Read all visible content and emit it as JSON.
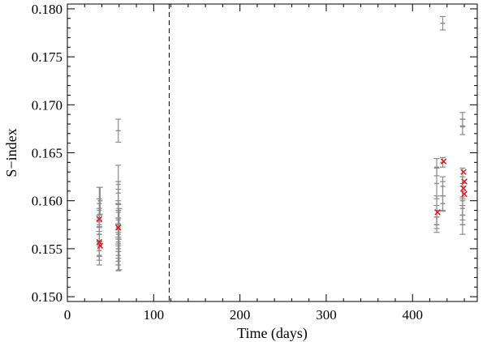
{
  "chart_data": {
    "type": "scatter",
    "xlabel": "Time (days)",
    "ylabel": "S−index",
    "xlim": [
      0,
      475
    ],
    "ylim": [
      0.1495,
      0.1805
    ],
    "x_ticks": [
      0,
      100,
      200,
      300,
      400
    ],
    "y_ticks": [
      0.15,
      0.155,
      0.16,
      0.165,
      0.17,
      0.175,
      0.18
    ],
    "y_tick_labels": [
      "0.150",
      "0.155",
      "0.160",
      "0.165",
      "0.170",
      "0.175",
      "0.180"
    ],
    "grid": false,
    "vline": {
      "x": 118,
      "style": "dashed"
    },
    "colors": {
      "errorbar": "#8c8c8c",
      "marker": "#e8141c",
      "axis": "#000000"
    },
    "series": [
      {
        "marker": "errorbar",
        "points": [
          {
            "x": 37,
            "y": 0.1597,
            "err": 0.0017
          },
          {
            "x": 37,
            "y": 0.159,
            "err": 0.0012
          },
          {
            "x": 37,
            "y": 0.1582,
            "err": 0.001
          },
          {
            "x": 37,
            "y": 0.1575,
            "err": 0.001
          },
          {
            "x": 37,
            "y": 0.1565,
            "err": 0.0008
          },
          {
            "x": 37,
            "y": 0.1555,
            "err": 0.0013
          },
          {
            "x": 37,
            "y": 0.1548,
            "err": 0.001
          },
          {
            "x": 37,
            "y": 0.1543,
            "err": 0.001
          },
          {
            "x": 38,
            "y": 0.16,
            "err": 0.0014
          },
          {
            "x": 59,
            "y": 0.1673,
            "err": 0.0012
          },
          {
            "x": 59,
            "y": 0.1617,
            "err": 0.002
          },
          {
            "x": 59,
            "y": 0.1608,
            "err": 0.0012
          },
          {
            "x": 59,
            "y": 0.1597,
            "err": 0.0015
          },
          {
            "x": 59,
            "y": 0.1588,
            "err": 0.0012
          },
          {
            "x": 59,
            "y": 0.158,
            "err": 0.001
          },
          {
            "x": 59,
            "y": 0.1572,
            "err": 0.001
          },
          {
            "x": 59,
            "y": 0.1565,
            "err": 0.001
          },
          {
            "x": 59,
            "y": 0.1557,
            "err": 0.001
          },
          {
            "x": 59,
            "y": 0.155,
            "err": 0.001
          },
          {
            "x": 59,
            "y": 0.1543,
            "err": 0.001
          },
          {
            "x": 59,
            "y": 0.1537,
            "err": 0.001
          },
          {
            "x": 60,
            "y": 0.156,
            "err": 0.0032
          },
          {
            "x": 428,
            "y": 0.1635,
            "err": 0.0009
          },
          {
            "x": 428,
            "y": 0.1618,
            "err": 0.0016
          },
          {
            "x": 428,
            "y": 0.159,
            "err": 0.0015
          },
          {
            "x": 428,
            "y": 0.1583,
            "err": 0.0012
          },
          {
            "x": 428,
            "y": 0.1575,
            "err": 0.0008
          },
          {
            "x": 435,
            "y": 0.1785,
            "err": 0.0007
          },
          {
            "x": 435,
            "y": 0.164,
            "err": 0.0005
          },
          {
            "x": 435,
            "y": 0.1615,
            "err": 0.001
          },
          {
            "x": 435,
            "y": 0.1605,
            "err": 0.0015
          },
          {
            "x": 435,
            "y": 0.1597,
            "err": 0.0008
          },
          {
            "x": 458,
            "y": 0.1685,
            "err": 0.0007
          },
          {
            "x": 458,
            "y": 0.1677,
            "err": 0.0008
          },
          {
            "x": 458,
            "y": 0.1618,
            "err": 0.0016
          },
          {
            "x": 458,
            "y": 0.161,
            "err": 0.0015
          },
          {
            "x": 458,
            "y": 0.16,
            "err": 0.0015
          },
          {
            "x": 458,
            "y": 0.1592,
            "err": 0.0012
          },
          {
            "x": 458,
            "y": 0.1585,
            "err": 0.001
          },
          {
            "x": 458,
            "y": 0.1575,
            "err": 0.001
          }
        ]
      },
      {
        "marker": "x",
        "points": [
          {
            "x": 37,
            "y": 0.1581
          },
          {
            "x": 37,
            "y": 0.1557
          },
          {
            "x": 38,
            "y": 0.1553
          },
          {
            "x": 59,
            "y": 0.1572
          },
          {
            "x": 429,
            "y": 0.1588
          },
          {
            "x": 436,
            "y": 0.1641
          },
          {
            "x": 459,
            "y": 0.163
          },
          {
            "x": 460,
            "y": 0.162
          },
          {
            "x": 459,
            "y": 0.1613
          },
          {
            "x": 460,
            "y": 0.1607
          }
        ]
      }
    ]
  }
}
